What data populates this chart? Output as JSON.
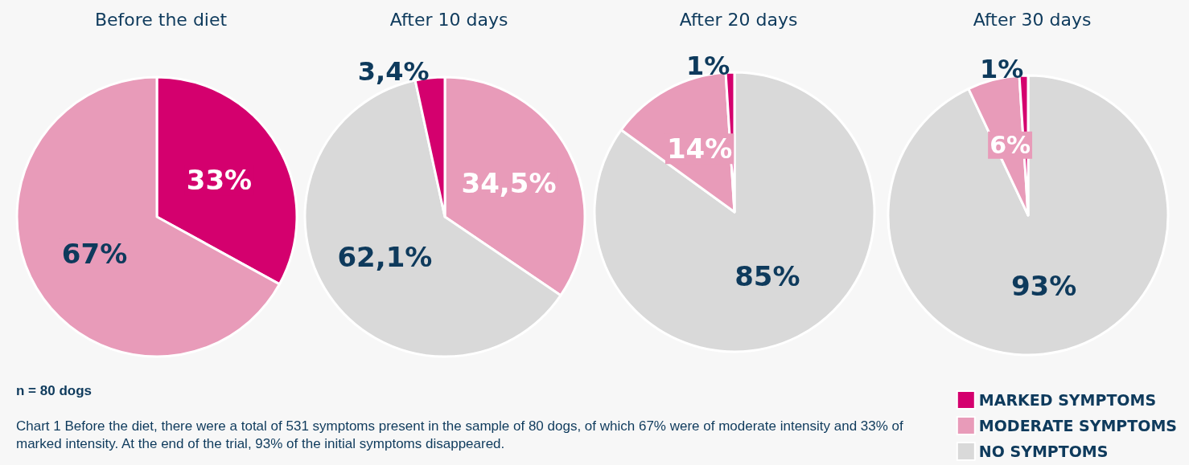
{
  "chart_data": [
    {
      "type": "pie",
      "title": "Before the diet",
      "categories": [
        null,
        null
      ],
      "values": [
        33,
        67
      ],
      "colors": [
        "#d4006e",
        "#e89bb9"
      ],
      "value_labels": [
        "33%",
        "67%"
      ],
      "legend": false,
      "annotations": [
        "n = 80 dogs",
        "Chart 1 Before the diet, there were a total of 531 symptoms present in the sample of 80 dogs, of which 67% were of moderate intensity and 33% of marked intensity. At the end of the trial, 93% of the initial symptoms disappeared."
      ]
    },
    {
      "type": "pie",
      "title": "After 10 days",
      "categories": [
        null,
        null,
        null
      ],
      "values": [
        34.5,
        62.1,
        3.4
      ],
      "colors": [
        "#e89bb9",
        "#d9d9d9",
        "#d4006e"
      ],
      "value_labels": [
        "34,5%",
        "62,1%",
        "3,4%"
      ],
      "legend": false
    },
    {
      "type": "pie",
      "title": "After 20 days",
      "categories": [
        null,
        null,
        null
      ],
      "values": [
        85,
        14,
        1
      ],
      "colors": [
        "#d9d9d9",
        "#e89bb9",
        "#d4006e"
      ],
      "value_labels": [
        "85%",
        "14%",
        "1%"
      ],
      "legend": false
    },
    {
      "type": "pie",
      "title": "After 30 days",
      "categories": [
        "NO SYMPTOMS",
        "MODERATE SYMPTOMS",
        "MARKED SYMPTOMS"
      ],
      "values": [
        93,
        6,
        1
      ],
      "colors": [
        "#d9d9d9",
        "#e89bb9",
        "#d4006e"
      ],
      "value_labels": [
        "93%",
        "6%",
        "1%"
      ],
      "legend": "bottom right"
    }
  ]
}
